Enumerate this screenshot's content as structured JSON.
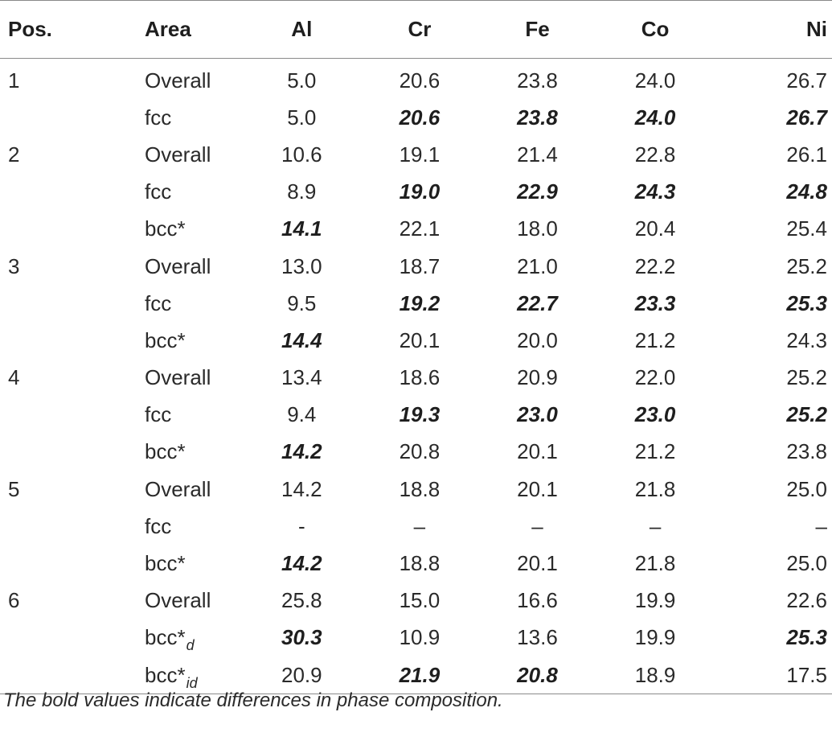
{
  "table": {
    "headers": [
      "Pos.",
      "Area",
      "Al",
      "Cr",
      "Fe",
      "Co",
      "Ni"
    ],
    "rows": [
      {
        "pos": "1",
        "area": "Overall",
        "area_sub": "",
        "cells": [
          {
            "v": "5.0",
            "b": false
          },
          {
            "v": "20.6",
            "b": false
          },
          {
            "v": "23.8",
            "b": false
          },
          {
            "v": "24.0",
            "b": false
          },
          {
            "v": "26.7",
            "b": false
          }
        ]
      },
      {
        "pos": "",
        "area": "fcc",
        "area_sub": "",
        "cells": [
          {
            "v": "5.0",
            "b": false
          },
          {
            "v": "20.6",
            "b": true
          },
          {
            "v": "23.8",
            "b": true
          },
          {
            "v": "24.0",
            "b": true
          },
          {
            "v": "26.7",
            "b": true
          }
        ]
      },
      {
        "pos": "2",
        "area": "Overall",
        "area_sub": "",
        "cells": [
          {
            "v": "10.6",
            "b": false
          },
          {
            "v": "19.1",
            "b": false
          },
          {
            "v": "21.4",
            "b": false
          },
          {
            "v": "22.8",
            "b": false
          },
          {
            "v": "26.1",
            "b": false
          }
        ]
      },
      {
        "pos": "",
        "area": "fcc",
        "area_sub": "",
        "cells": [
          {
            "v": "8.9",
            "b": false
          },
          {
            "v": "19.0",
            "b": true
          },
          {
            "v": "22.9",
            "b": true
          },
          {
            "v": "24.3",
            "b": true
          },
          {
            "v": "24.8",
            "b": true
          }
        ]
      },
      {
        "pos": "",
        "area": "bcc*",
        "area_sub": "",
        "cells": [
          {
            "v": "14.1",
            "b": true
          },
          {
            "v": "22.1",
            "b": false
          },
          {
            "v": "18.0",
            "b": false
          },
          {
            "v": "20.4",
            "b": false
          },
          {
            "v": "25.4",
            "b": false
          }
        ]
      },
      {
        "pos": "3",
        "area": "Overall",
        "area_sub": "",
        "cells": [
          {
            "v": "13.0",
            "b": false
          },
          {
            "v": "18.7",
            "b": false
          },
          {
            "v": "21.0",
            "b": false
          },
          {
            "v": "22.2",
            "b": false
          },
          {
            "v": "25.2",
            "b": false
          }
        ]
      },
      {
        "pos": "",
        "area": "fcc",
        "area_sub": "",
        "cells": [
          {
            "v": "9.5",
            "b": false
          },
          {
            "v": "19.2",
            "b": true
          },
          {
            "v": "22.7",
            "b": true
          },
          {
            "v": "23.3",
            "b": true
          },
          {
            "v": "25.3",
            "b": true
          }
        ]
      },
      {
        "pos": "",
        "area": "bcc*",
        "area_sub": "",
        "cells": [
          {
            "v": "14.4",
            "b": true
          },
          {
            "v": "20.1",
            "b": false
          },
          {
            "v": "20.0",
            "b": false
          },
          {
            "v": "21.2",
            "b": false
          },
          {
            "v": "24.3",
            "b": false
          }
        ]
      },
      {
        "pos": "4",
        "area": "Overall",
        "area_sub": "",
        "cells": [
          {
            "v": "13.4",
            "b": false
          },
          {
            "v": "18.6",
            "b": false
          },
          {
            "v": "20.9",
            "b": false
          },
          {
            "v": "22.0",
            "b": false
          },
          {
            "v": "25.2",
            "b": false
          }
        ]
      },
      {
        "pos": "",
        "area": "fcc",
        "area_sub": "",
        "cells": [
          {
            "v": "9.4",
            "b": false
          },
          {
            "v": "19.3",
            "b": true
          },
          {
            "v": "23.0",
            "b": true
          },
          {
            "v": "23.0",
            "b": true
          },
          {
            "v": "25.2",
            "b": true
          }
        ]
      },
      {
        "pos": "",
        "area": "bcc*",
        "area_sub": "",
        "cells": [
          {
            "v": "14.2",
            "b": true
          },
          {
            "v": "20.8",
            "b": false
          },
          {
            "v": "20.1",
            "b": false
          },
          {
            "v": "21.2",
            "b": false
          },
          {
            "v": "23.8",
            "b": false
          }
        ]
      },
      {
        "pos": "5",
        "area": "Overall",
        "area_sub": "",
        "cells": [
          {
            "v": "14.2",
            "b": false
          },
          {
            "v": "18.8",
            "b": false
          },
          {
            "v": "20.1",
            "b": false
          },
          {
            "v": "21.8",
            "b": false
          },
          {
            "v": "25.0",
            "b": false
          }
        ]
      },
      {
        "pos": "",
        "area": "fcc",
        "area_sub": "",
        "cells": [
          {
            "v": "-",
            "b": false
          },
          {
            "v": "–",
            "b": false
          },
          {
            "v": "–",
            "b": false
          },
          {
            "v": "–",
            "b": false
          },
          {
            "v": "–",
            "b": false
          }
        ]
      },
      {
        "pos": "",
        "area": "bcc*",
        "area_sub": "",
        "cells": [
          {
            "v": "14.2",
            "b": true
          },
          {
            "v": "18.8",
            "b": false
          },
          {
            "v": "20.1",
            "b": false
          },
          {
            "v": "21.8",
            "b": false
          },
          {
            "v": "25.0",
            "b": false
          }
        ]
      },
      {
        "pos": "6",
        "area": "Overall",
        "area_sub": "",
        "cells": [
          {
            "v": "25.8",
            "b": false
          },
          {
            "v": "15.0",
            "b": false
          },
          {
            "v": "16.6",
            "b": false
          },
          {
            "v": "19.9",
            "b": false
          },
          {
            "v": "22.6",
            "b": false
          }
        ]
      },
      {
        "pos": "",
        "area": "bcc*",
        "area_sub": "d",
        "cells": [
          {
            "v": "30.3",
            "b": true
          },
          {
            "v": "10.9",
            "b": false
          },
          {
            "v": "13.6",
            "b": false
          },
          {
            "v": "19.9",
            "b": false
          },
          {
            "v": "25.3",
            "b": true
          }
        ]
      },
      {
        "pos": "",
        "area": "bcc*",
        "area_sub": "id",
        "cells": [
          {
            "v": "20.9",
            "b": false
          },
          {
            "v": "21.9",
            "b": true
          },
          {
            "v": "20.8",
            "b": true
          },
          {
            "v": "18.9",
            "b": false
          },
          {
            "v": "17.5",
            "b": false
          }
        ]
      }
    ]
  },
  "footnote": "The bold values indicate differences in phase composition."
}
